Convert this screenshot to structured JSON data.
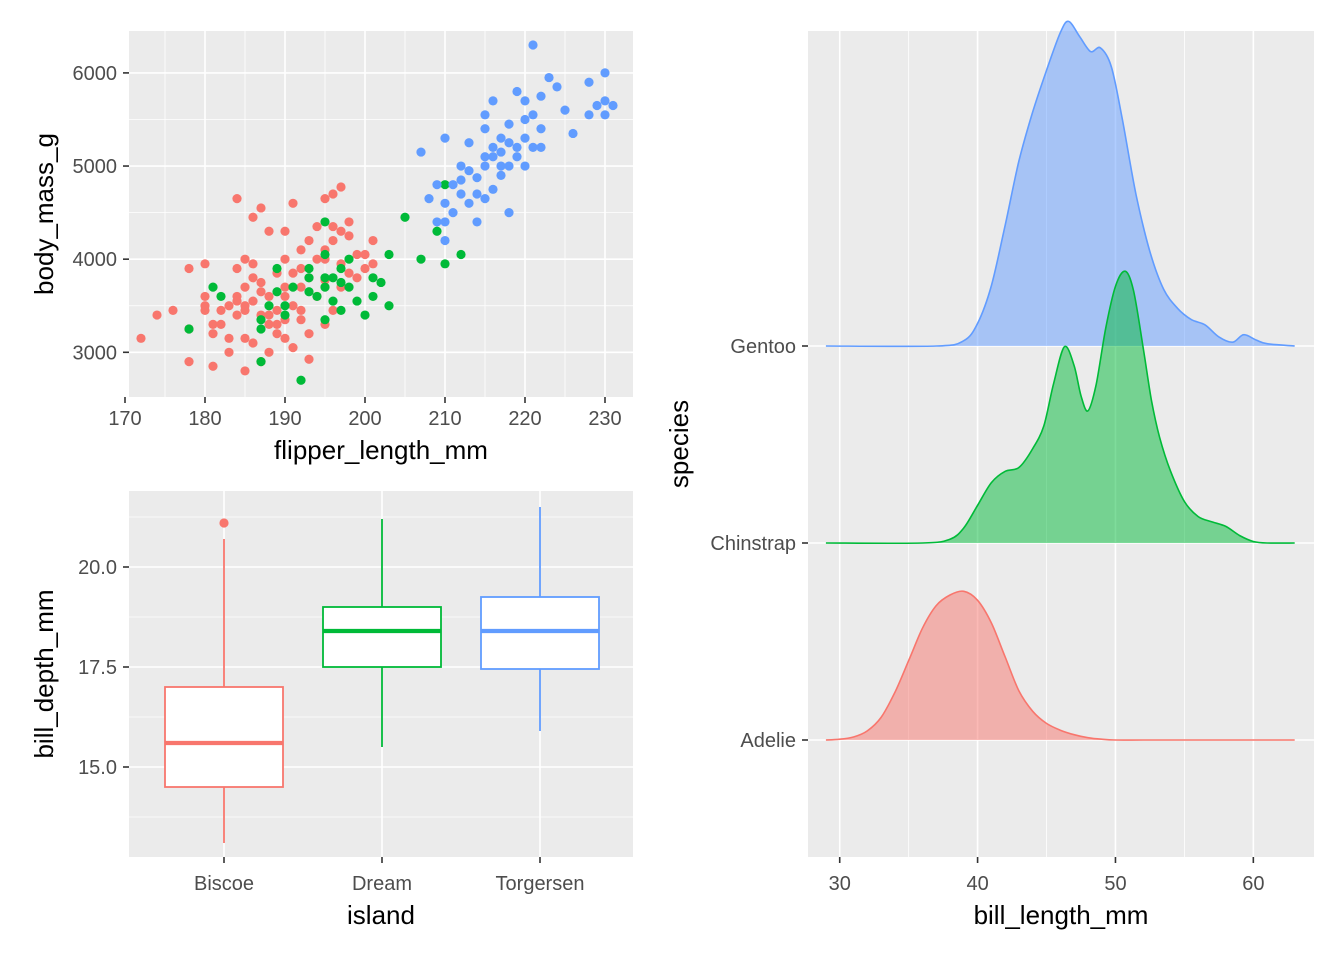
{
  "colors": {
    "Adelie": "#f8766d",
    "Chinstrap": "#00ba38",
    "Gentoo": "#619cff",
    "panel": "#ebebeb",
    "text": "#4d4d4d"
  },
  "chart_data": [
    {
      "type": "scatter",
      "xlabel": "flipper_length_mm",
      "ylabel": "body_mass_g",
      "xlim": [
        170.5,
        233.5
      ],
      "ylim": [
        2520,
        6450
      ],
      "x_ticks": [
        170,
        180,
        190,
        200,
        210,
        220,
        230
      ],
      "y_ticks": [
        3000,
        4000,
        5000,
        6000
      ],
      "series": [
        {
          "name": "Adelie",
          "points": [
            [
              172,
              3150
            ],
            [
              174,
              3400
            ],
            [
              176,
              3450
            ],
            [
              178,
              3900
            ],
            [
              178,
              3250
            ],
            [
              178,
              2900
            ],
            [
              180,
              3950
            ],
            [
              180,
              3600
            ],
            [
              180,
              3500
            ],
            [
              181,
              3200
            ],
            [
              181,
              2850
            ],
            [
              182,
              3450
            ],
            [
              182,
              3300
            ],
            [
              183,
              3150
            ],
            [
              183,
              3000
            ],
            [
              184,
              3900
            ],
            [
              184,
              3600
            ],
            [
              184,
              4650
            ],
            [
              184,
              3550
            ],
            [
              185,
              3700
            ],
            [
              185,
              3500
            ],
            [
              185,
              3150
            ],
            [
              185,
              2800
            ],
            [
              185,
              4000
            ],
            [
              186,
              3800
            ],
            [
              186,
              3550
            ],
            [
              186,
              3100
            ],
            [
              186,
              4450
            ],
            [
              187,
              3750
            ],
            [
              187,
              3400
            ],
            [
              187,
              2900
            ],
            [
              187,
              3650
            ],
            [
              188,
              3600
            ],
            [
              188,
              3300
            ],
            [
              188,
              4300
            ],
            [
              188,
              3000
            ],
            [
              189,
              3850
            ],
            [
              189,
              3200
            ],
            [
              189,
              3450
            ],
            [
              190,
              4000
            ],
            [
              190,
              3600
            ],
            [
              190,
              3700
            ],
            [
              190,
              3350
            ],
            [
              190,
              3150
            ],
            [
              191,
              4600
            ],
            [
              191,
              3850
            ],
            [
              191,
              3500
            ],
            [
              191,
              3050
            ],
            [
              192,
              3450
            ],
            [
              192,
              3900
            ],
            [
              192,
              3700
            ],
            [
              192,
              3350
            ],
            [
              193,
              3800
            ],
            [
              193,
              4200
            ],
            [
              193,
              3200
            ],
            [
              193,
              2925
            ],
            [
              194,
              4000
            ],
            [
              194,
              3600
            ],
            [
              195,
              4100
            ],
            [
              195,
              3775
            ],
            [
              195,
              3300
            ],
            [
              195,
              4650
            ],
            [
              196,
              4200
            ],
            [
              196,
              3450
            ],
            [
              196,
              4350
            ],
            [
              197,
              4300
            ],
            [
              197,
              3700
            ],
            [
              197,
              3950
            ],
            [
              198,
              3850
            ],
            [
              198,
              4400
            ],
            [
              199,
              4050
            ],
            [
              199,
              3800
            ],
            [
              200,
              4050
            ],
            [
              201,
              4200
            ],
            [
              190,
              4300
            ],
            [
              187,
              4550
            ],
            [
              192,
              4100
            ],
            [
              194,
              4350
            ],
            [
              185,
              3450
            ],
            [
              186,
              3950
            ],
            [
              189,
              3300
            ],
            [
              188,
              3400
            ],
            [
              196,
              4700
            ],
            [
              197,
              4775
            ],
            [
              195,
              4000
            ],
            [
              198,
              4250
            ],
            [
              200,
              3900
            ],
            [
              201,
              3950
            ],
            [
              184,
              3400
            ],
            [
              183,
              3500
            ],
            [
              181,
              3300
            ],
            [
              180,
              3450
            ]
          ]
        },
        {
          "name": "Chinstrap",
          "points": [
            [
              178,
              3250
            ],
            [
              181,
              3700
            ],
            [
              182,
              3600
            ],
            [
              187,
              2900
            ],
            [
              187,
              3350
            ],
            [
              187,
              3250
            ],
            [
              188,
              3500
            ],
            [
              189,
              3650
            ],
            [
              190,
              3400
            ],
            [
              191,
              3700
            ],
            [
              192,
              2700
            ],
            [
              193,
              3800
            ],
            [
              193,
              3650
            ],
            [
              194,
              3600
            ],
            [
              195,
              3800
            ],
            [
              195,
              3350
            ],
            [
              195,
              4050
            ],
            [
              195,
              3700
            ],
            [
              196,
              3800
            ],
            [
              196,
              3550
            ],
            [
              197,
              3450
            ],
            [
              197,
              3900
            ],
            [
              197,
              3750
            ],
            [
              198,
              3700
            ],
            [
              198,
              4000
            ],
            [
              199,
              3550
            ],
            [
              200,
              3400
            ],
            [
              201,
              3800
            ],
            [
              201,
              3600
            ],
            [
              202,
              3750
            ],
            [
              203,
              4050
            ],
            [
              203,
              3500
            ],
            [
              205,
              4450
            ],
            [
              207,
              4000
            ],
            [
              209,
              4300
            ],
            [
              210,
              4800
            ],
            [
              210,
              3950
            ],
            [
              212,
              4050
            ],
            [
              195,
              4400
            ],
            [
              193,
              3900
            ],
            [
              190,
              3500
            ],
            [
              189,
              3900
            ]
          ]
        },
        {
          "name": "Gentoo",
          "points": [
            [
              207,
              5150
            ],
            [
              208,
              4650
            ],
            [
              209,
              4400
            ],
            [
              209,
              4800
            ],
            [
              210,
              4200
            ],
            [
              210,
              4600
            ],
            [
              210,
              4400
            ],
            [
              210,
              5300
            ],
            [
              211,
              4500
            ],
            [
              211,
              4800
            ],
            [
              212,
              4700
            ],
            [
              212,
              4850
            ],
            [
              213,
              4600
            ],
            [
              213,
              4950
            ],
            [
              214,
              4700
            ],
            [
              214,
              4875
            ],
            [
              215,
              4650
            ],
            [
              215,
              5000
            ],
            [
              215,
              5400
            ],
            [
              215,
              5550
            ],
            [
              216,
              4750
            ],
            [
              216,
              5100
            ],
            [
              216,
              5700
            ],
            [
              217,
              4900
            ],
            [
              217,
              5000
            ],
            [
              217,
              5300
            ],
            [
              218,
              5000
            ],
            [
              218,
              5450
            ],
            [
              218,
              4500
            ],
            [
              219,
              5200
            ],
            [
              219,
              5800
            ],
            [
              220,
              5500
            ],
            [
              220,
              5300
            ],
            [
              220,
              5700
            ],
            [
              221,
              5200
            ],
            [
              221,
              6300
            ],
            [
              221,
              5550
            ],
            [
              222,
              5400
            ],
            [
              222,
              5750
            ],
            [
              223,
              5950
            ],
            [
              224,
              5850
            ],
            [
              225,
              5600
            ],
            [
              226,
              5350
            ],
            [
              228,
              5900
            ],
            [
              228,
              5550
            ],
            [
              229,
              5650
            ],
            [
              230,
              5700
            ],
            [
              230,
              6000
            ],
            [
              231,
              5650
            ],
            [
              230,
              5550
            ],
            [
              212,
              5000
            ],
            [
              213,
              5250
            ],
            [
              214,
              4400
            ],
            [
              215,
              5100
            ],
            [
              216,
              5200
            ],
            [
              217,
              5150
            ],
            [
              218,
              5250
            ],
            [
              219,
              5100
            ],
            [
              220,
              5000
            ],
            [
              222,
              5200
            ]
          ]
        }
      ]
    },
    {
      "type": "box",
      "xlabel": "island",
      "ylabel": "bill_depth_mm",
      "categories": [
        "Biscoe",
        "Dream",
        "Torgersen"
      ],
      "ylim": [
        12.75,
        21.9
      ],
      "y_ticks": [
        15.0,
        17.5,
        20.0
      ],
      "y_tick_labels": [
        "15.0",
        "17.5",
        "20.0"
      ],
      "boxes": [
        {
          "name": "Biscoe",
          "lower": 13.1,
          "q1": 14.5,
          "median": 15.6,
          "q3": 17.0,
          "upper": 20.7,
          "outliers": [
            21.1
          ]
        },
        {
          "name": "Dream",
          "lower": 15.5,
          "q1": 17.5,
          "median": 18.4,
          "q3": 19.0,
          "upper": 21.2,
          "outliers": []
        },
        {
          "name": "Torgersen",
          "lower": 15.9,
          "q1": 17.45,
          "median": 18.4,
          "q3": 19.25,
          "upper": 21.5,
          "outliers": []
        }
      ]
    },
    {
      "type": "area",
      "subtype": "ridgeline",
      "xlabel": "bill_length_mm",
      "ylabel": "species",
      "xlim": [
        27.7,
        64.4
      ],
      "x_ticks": [
        30,
        40,
        50,
        60
      ],
      "categories": [
        "Adelie",
        "Chinstrap",
        "Gentoo"
      ],
      "series": [
        {
          "name": "Adelie",
          "x": [
            29,
            30,
            31,
            32,
            33,
            34,
            35,
            36,
            37,
            38,
            39,
            40,
            41,
            42,
            43,
            44,
            45,
            46,
            47,
            48,
            49,
            50,
            52,
            55,
            60,
            63
          ],
          "y": [
            0.0,
            0.01,
            0.04,
            0.12,
            0.3,
            0.63,
            1.05,
            1.48,
            1.78,
            1.92,
            1.97,
            1.85,
            1.55,
            1.1,
            0.65,
            0.38,
            0.22,
            0.13,
            0.07,
            0.03,
            0.01,
            0.0,
            0.0,
            0.0,
            0.0,
            0.0
          ]
        },
        {
          "name": "Chinstrap",
          "x": [
            29,
            36,
            38,
            39,
            40,
            41,
            42,
            43,
            44,
            44.8,
            45.5,
            46.3,
            47,
            47.5,
            48,
            48.6,
            49.3,
            50,
            50.7,
            51.3,
            52,
            52.6,
            53.2,
            54,
            55,
            56,
            57,
            58,
            59,
            60,
            61,
            63
          ],
          "y": [
            0.0,
            0.0,
            0.05,
            0.2,
            0.5,
            0.8,
            0.95,
            1.0,
            1.25,
            1.55,
            2.1,
            2.6,
            2.35,
            1.95,
            1.75,
            2.1,
            2.85,
            3.4,
            3.6,
            3.35,
            2.6,
            1.9,
            1.4,
            0.95,
            0.55,
            0.35,
            0.28,
            0.22,
            0.1,
            0.02,
            0.0,
            0.0
          ]
        },
        {
          "name": "Gentoo",
          "x": [
            29,
            37,
            39,
            40,
            41,
            42,
            43,
            44,
            45,
            46,
            46.6,
            47.4,
            48.2,
            48.9,
            49.7,
            50.5,
            51.5,
            52.5,
            53.5,
            54.5,
            55.5,
            56.5,
            57.5,
            58.5,
            59.3,
            60.2,
            61,
            63
          ],
          "y": [
            0.0,
            0.0,
            0.07,
            0.3,
            0.8,
            1.6,
            2.45,
            3.1,
            3.65,
            4.15,
            4.3,
            4.1,
            3.9,
            3.95,
            3.7,
            3.0,
            2.0,
            1.25,
            0.75,
            0.5,
            0.35,
            0.28,
            0.12,
            0.05,
            0.15,
            0.08,
            0.03,
            0.0
          ]
        }
      ]
    }
  ]
}
